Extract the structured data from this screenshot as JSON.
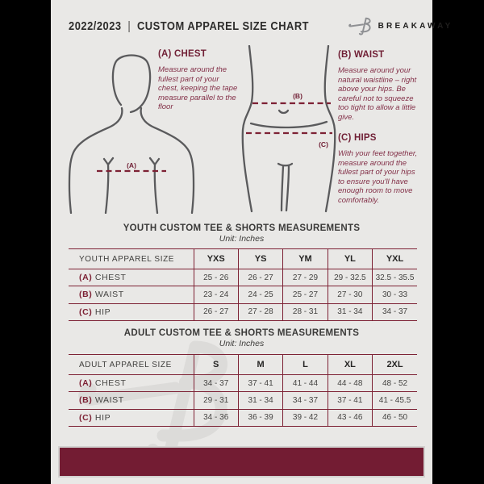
{
  "header": {
    "year": "2022/2023",
    "divider": "|",
    "title": "CUSTOM APPAREL SIZE CHART",
    "brand": "BREAKAWAY"
  },
  "colors": {
    "accent": "#7d2134",
    "accent-deep": "#701f35",
    "accent-body": "#833048",
    "bar": "#731c33",
    "page_bg": "#e9e8e6",
    "figure": "#5a5a5c",
    "dark": "#2d2c2b"
  },
  "diagram": {
    "chest": {
      "heading": "(A) CHEST",
      "body": "Measure around the fullest part of your chest, keeping the tape measure parallel to the floor",
      "marker": "(A)"
    },
    "waist": {
      "heading": "(B) WAIST",
      "body": "Measure around your natural waistline – right above your hips. Be careful not to squeeze too tight to allow a little give.",
      "marker": "(B)"
    },
    "hips": {
      "heading": "(C) HIPS",
      "body": "With your feet together, measure around the fullest part of your hips to ensure you'll have enough room to move comfortably.",
      "marker": "(C)"
    }
  },
  "tables": [
    {
      "title": "YOUTH CUSTOM TEE & SHORTS MEASUREMENTS",
      "unit": "Unit: Inches",
      "label_header": "YOUTH APPAREL SIZE",
      "size_headers": [
        "YXS",
        "YS",
        "YM",
        "YL",
        "YXL"
      ],
      "rows": [
        {
          "prefix": "(A)",
          "label": "CHEST",
          "values": [
            "25 - 26",
            "26 - 27",
            "27 - 29",
            "29 - 32.5",
            "32.5 - 35.5"
          ]
        },
        {
          "prefix": "(B)",
          "label": "WAIST",
          "values": [
            "23 - 24",
            "24 - 25",
            "25 - 27",
            "27 - 30",
            "30 - 33"
          ]
        },
        {
          "prefix": "(C)",
          "label": "HIP",
          "values": [
            "26 - 27",
            "27 - 28",
            "28 - 31",
            "31 - 34",
            "34 - 37"
          ]
        }
      ]
    },
    {
      "title": "ADULT CUSTOM TEE & SHORTS MEASUREMENTS",
      "unit": "Unit: Inches",
      "label_header": "ADULT APPAREL SIZE",
      "size_headers": [
        "S",
        "M",
        "L",
        "XL",
        "2XL"
      ],
      "rows": [
        {
          "prefix": "(A)",
          "label": "CHEST",
          "values": [
            "34 - 37",
            "37 - 41",
            "41 - 44",
            "44 - 48",
            "48 - 52"
          ]
        },
        {
          "prefix": "(B)",
          "label": "WAIST",
          "values": [
            "29 - 31",
            "31 - 34",
            "34 - 37",
            "37 - 41",
            "41 - 45.5"
          ]
        },
        {
          "prefix": "(C)",
          "label": "HIP",
          "values": [
            "34 - 36",
            "36 - 39",
            "39 - 42",
            "43 - 46",
            "46 - 50"
          ]
        }
      ]
    }
  ]
}
